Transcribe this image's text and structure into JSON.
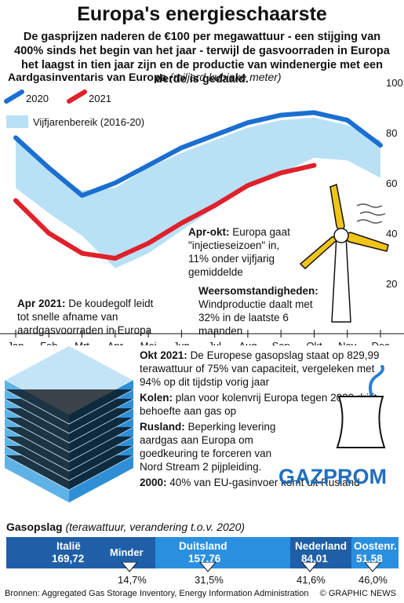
{
  "header": {
    "title": "Europa's energieschaarste",
    "subtitle": "De gasprijzen naderen de €100 per megawattuur - een stijging van 400% sinds het begin van het jaar - terwijl de gasvoorraden in Europa het laagst in tien jaar zijn en de productie van windenergie met een derde is gedaald."
  },
  "chart_section": {
    "title": "Aardgasinventaris van Europa",
    "unit": "(miljard kubieke meter)"
  },
  "chart_data": {
    "type": "line",
    "title": "Aardgasinventaris van Europa",
    "ylabel": "miljard kubieke meter",
    "x": [
      "Jan",
      "Feb",
      "Mrt",
      "Apr",
      "Mei",
      "Jun",
      "Jul",
      "Aug",
      "Sep",
      "Okt",
      "Nov",
      "Dec"
    ],
    "y_ticks": [
      20,
      40,
      60,
      80,
      100
    ],
    "ylim": [
      0,
      100
    ],
    "series": [
      {
        "name": "2020",
        "color": "#1a6fd1",
        "values": [
          78,
          66,
          55,
          60,
          67,
          74,
          79,
          84,
          87,
          88,
          85,
          75
        ]
      },
      {
        "name": "2021",
        "color": "#e0202a",
        "values": [
          53,
          40,
          32,
          30,
          36,
          44,
          51,
          59,
          64,
          67,
          null,
          null
        ]
      }
    ],
    "band": {
      "name": "Vijfjarenbereik (2016-20)",
      "color": "#b9e1f6",
      "upper": [
        77,
        65,
        57,
        58,
        66,
        72,
        77,
        82,
        85,
        86,
        83,
        77
      ],
      "lower": [
        58,
        48,
        39,
        26,
        32,
        41,
        50,
        58,
        64,
        70,
        69,
        62
      ]
    },
    "legend_position": "top-left",
    "grid": false
  },
  "annotations": {
    "apr_okt": {
      "bold": "Apr-okt:",
      "text": "Europa gaat \"injectieseizoen\" in, 11% onder vijfjarig gemiddelde"
    },
    "apr_2021": {
      "bold": "Apr 2021:",
      "text": "De koudegolf leidt tot snelle afname van aardgas­voorraden in Europa"
    },
    "weer": {
      "bold": "Weersomstandigheden:",
      "text": "Windproductie daalt met 32% in de laatste 6 maanden"
    }
  },
  "facts": [
    {
      "bold": "Okt 2021:",
      "text": "De Europese gasopslag staat op 829,99 terawattuur of 75% van capaciteit, vergeleken met 94% op dit tijdstip vorig jaar"
    },
    {
      "bold": "Kolen:",
      "text": "plan voor kolenvrij Europa tegen 2030 drijft behoefte aan gas op"
    },
    {
      "bold": "Rusland:",
      "text": "Beperking levering aardgas aan Europa om goedkeuring te forceren van Nord Stream 2 pijpleiding."
    },
    {
      "bold": "2000:",
      "text": "40% van EU-gasinvoer komt uit Rusland"
    }
  ],
  "gazprom_logo": "GAZPROM",
  "storage": {
    "title": "Gasopslag",
    "unit": "(terawattuur, verandering t.o.v. 2020)",
    "minder_label": "Minder",
    "countries": [
      {
        "name": "Italië",
        "value": "169,72",
        "change": "14,7%",
        "color": "#1f5fa8"
      },
      {
        "name": "Duitsland",
        "value": "157,76",
        "change": "31,5%",
        "color": "#2b8fe0"
      },
      {
        "name": "Nederland",
        "value": "84,01",
        "change": "41,6%",
        "color": "#1f5fa8"
      },
      {
        "name": "Oostenr.",
        "value": "51,58",
        "change": "46,0%",
        "color": "#2b8fe0"
      }
    ]
  },
  "footer": {
    "source": "Bronnen: Aggregated Gas Storage Inventory, Energy Information Administration",
    "credit": "© GRAPHIC NEWS"
  },
  "watermark": "GRAPHIC NEWS"
}
